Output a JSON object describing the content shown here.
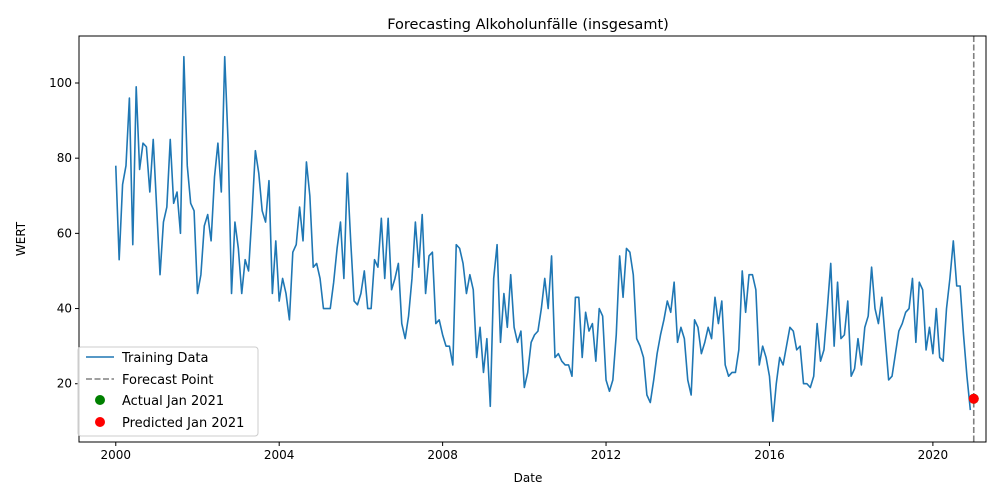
{
  "chart_data": {
    "type": "line",
    "title": "Forecasting Alkoholunfälle (insgesamt)",
    "xlabel": "Date",
    "ylabel": "WERT",
    "xlim": [
      1999.1,
      2021.3
    ],
    "ylim": [
      4.5,
      112.5
    ],
    "x_ticks": [
      2000,
      2004,
      2008,
      2012,
      2016,
      2020
    ],
    "x_tick_labels": [
      "2000",
      "2004",
      "2008",
      "2012",
      "2016",
      "2020"
    ],
    "y_ticks": [
      20,
      40,
      60,
      80,
      100
    ],
    "y_tick_labels": [
      "20",
      "40",
      "60",
      "80",
      "100"
    ],
    "grid": false,
    "legend_position": "lower left",
    "series": [
      {
        "name": "Training Data",
        "kind": "line",
        "color": "#1f77b4",
        "start": "2000-01",
        "frequency": "monthly",
        "values": [
          78,
          53,
          73,
          78,
          96,
          57,
          99,
          77,
          84,
          83,
          71,
          85,
          67,
          49,
          63,
          67,
          85,
          68,
          71,
          60,
          107,
          78,
          68,
          66,
          44,
          49,
          62,
          65,
          58,
          75,
          84,
          71,
          107,
          84,
          44,
          63,
          56,
          44,
          53,
          50,
          65,
          82,
          76,
          66,
          63,
          74,
          44,
          58,
          42,
          48,
          44,
          37,
          55,
          57,
          67,
          58,
          79,
          70,
          51,
          52,
          48,
          40,
          40,
          40,
          47,
          56,
          63,
          48,
          76,
          58,
          42,
          41,
          44,
          50,
          40,
          40,
          53,
          51,
          64,
          48,
          64,
          45,
          48,
          52,
          36,
          32,
          38,
          48,
          63,
          51,
          65,
          44,
          54,
          55,
          36,
          37,
          33,
          30,
          30,
          25,
          57,
          56,
          52,
          44,
          49,
          45,
          27,
          35,
          23,
          32,
          14,
          48,
          57,
          31,
          44,
          35,
          49,
          35,
          31,
          34,
          19,
          23,
          31,
          33,
          34,
          40,
          48,
          40,
          54,
          27,
          28,
          26,
          25,
          25,
          22,
          43,
          43,
          27,
          39,
          34,
          36,
          26,
          40,
          38,
          21,
          18,
          21,
          33,
          54,
          43,
          56,
          55,
          49,
          32,
          30,
          27,
          17,
          15,
          21,
          28,
          33,
          37,
          42,
          39,
          47,
          31,
          35,
          32,
          21,
          17,
          37,
          35,
          28,
          31,
          35,
          32,
          43,
          36,
          42,
          25,
          22,
          23,
          23,
          29,
          50,
          39,
          49,
          49,
          45,
          25,
          30,
          27,
          22,
          10,
          20,
          27,
          25,
          30,
          35,
          34,
          29,
          30,
          20,
          20,
          19,
          22,
          36,
          26,
          29,
          40,
          52,
          30,
          47,
          32,
          33,
          42,
          22,
          24,
          32,
          25,
          35,
          38,
          51,
          40,
          36,
          43,
          32,
          21,
          22,
          28,
          34,
          36,
          39,
          40,
          48,
          31,
          47,
          45,
          29,
          35,
          28,
          40,
          27,
          26,
          40,
          48,
          58,
          46,
          46,
          33,
          22,
          13
        ]
      },
      {
        "name": "Forecast Point",
        "kind": "vline",
        "color": "#808080",
        "x": "2021-01"
      },
      {
        "name": "Actual Jan 2021",
        "kind": "point",
        "color": "#008000",
        "x": "2021-01",
        "y": 16
      },
      {
        "name": "Predicted Jan 2021",
        "kind": "point",
        "color": "#ff0000",
        "x": "2021-01",
        "y": 16
      }
    ]
  }
}
